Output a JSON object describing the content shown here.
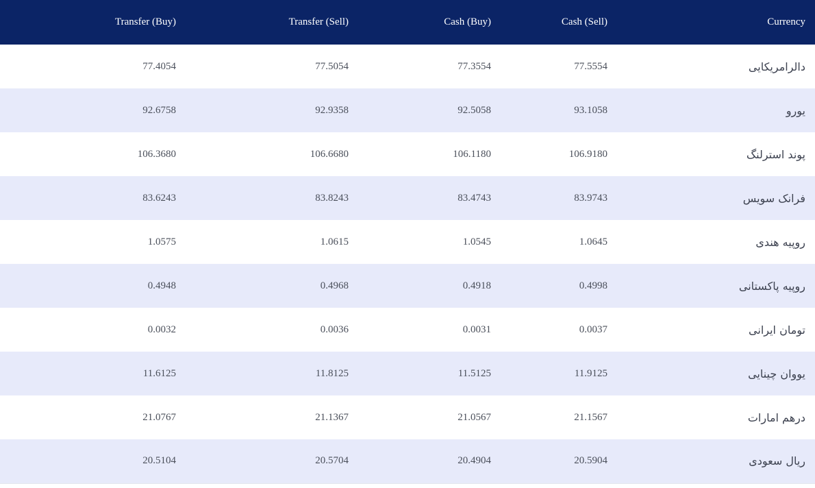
{
  "table": {
    "headers": {
      "currency": "Currency",
      "cash_sell": "Cash (Sell)",
      "cash_buy": "Cash (Buy)",
      "transfer_sell": "Transfer (Sell)",
      "transfer_buy": "Transfer (Buy)"
    },
    "rows": [
      {
        "currency": "دالرامریکایی",
        "cash_sell": "77.5554",
        "cash_buy": "77.3554",
        "transfer_sell": "77.5054",
        "transfer_buy": "77.4054"
      },
      {
        "currency": "یورو",
        "cash_sell": "93.1058",
        "cash_buy": "92.5058",
        "transfer_sell": "92.9358",
        "transfer_buy": "92.6758"
      },
      {
        "currency": "پوند استرلنگ",
        "cash_sell": "106.9180",
        "cash_buy": "106.1180",
        "transfer_sell": "106.6680",
        "transfer_buy": "106.3680"
      },
      {
        "currency": "فرانک سویس",
        "cash_sell": "83.9743",
        "cash_buy": "83.4743",
        "transfer_sell": "83.8243",
        "transfer_buy": "83.6243"
      },
      {
        "currency": "روپیه هندی",
        "cash_sell": "1.0645",
        "cash_buy": "1.0545",
        "transfer_sell": "1.0615",
        "transfer_buy": "1.0575"
      },
      {
        "currency": "روپیه پاکستانی",
        "cash_sell": "0.4998",
        "cash_buy": "0.4918",
        "transfer_sell": "0.4968",
        "transfer_buy": "0.4948"
      },
      {
        "currency": "تومان ایرانی",
        "cash_sell": "0.0037",
        "cash_buy": "0.0031",
        "transfer_sell": "0.0036",
        "transfer_buy": "0.0032"
      },
      {
        "currency": "یووان چینایی",
        "cash_sell": "11.9125",
        "cash_buy": "11.5125",
        "transfer_sell": "11.8125",
        "transfer_buy": "11.6125"
      },
      {
        "currency": "درهم امارات",
        "cash_sell": "21.1567",
        "cash_buy": "21.0567",
        "transfer_sell": "21.1367",
        "transfer_buy": "21.0767"
      },
      {
        "currency": "ریال سعودی",
        "cash_sell": "20.5904",
        "cash_buy": "20.4904",
        "transfer_sell": "20.5704",
        "transfer_buy": "20.5104"
      }
    ]
  },
  "colors": {
    "header_bg": "#0b2466",
    "header_text": "#ffffff",
    "stripe_bg": "#e7eafa",
    "row_bg": "#ffffff"
  }
}
